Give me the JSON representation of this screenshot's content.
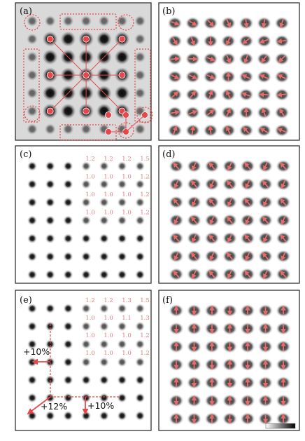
{
  "panels": [
    {
      "id": "a",
      "label": "(a)"
    },
    {
      "id": "b",
      "label": "(b)"
    },
    {
      "id": "c",
      "label": "(c)"
    },
    {
      "id": "d",
      "label": "(d)"
    },
    {
      "id": "e",
      "label": "(e)"
    },
    {
      "id": "f",
      "label": "(f)"
    }
  ],
  "ratio_tables": {
    "c": [
      [
        "1.2",
        "1.2",
        "1.2",
        "1.5"
      ],
      [
        "1.0",
        "1.0",
        "1.0",
        "1.2"
      ],
      [
        "1.0",
        "1.0",
        "1.0",
        "1.2"
      ],
      [
        "1.0",
        "1.0",
        "1.0",
        "1.2"
      ]
    ],
    "e": [
      [
        "1.2",
        "1.2",
        "1.3",
        "1.5"
      ],
      [
        "1.0",
        "1.0",
        "1.1",
        "1.3"
      ],
      [
        "1.0",
        "1.0",
        "1.0",
        "1.2"
      ],
      [
        "1.0",
        "1.0",
        "1.0",
        "1.2"
      ]
    ]
  },
  "annotations_e": {
    "left": "+10%",
    "diag": "+12%",
    "down": "+10%"
  },
  "colors": {
    "accent": "#e8474a",
    "number": "#e37f7f",
    "frame": "#222222"
  }
}
